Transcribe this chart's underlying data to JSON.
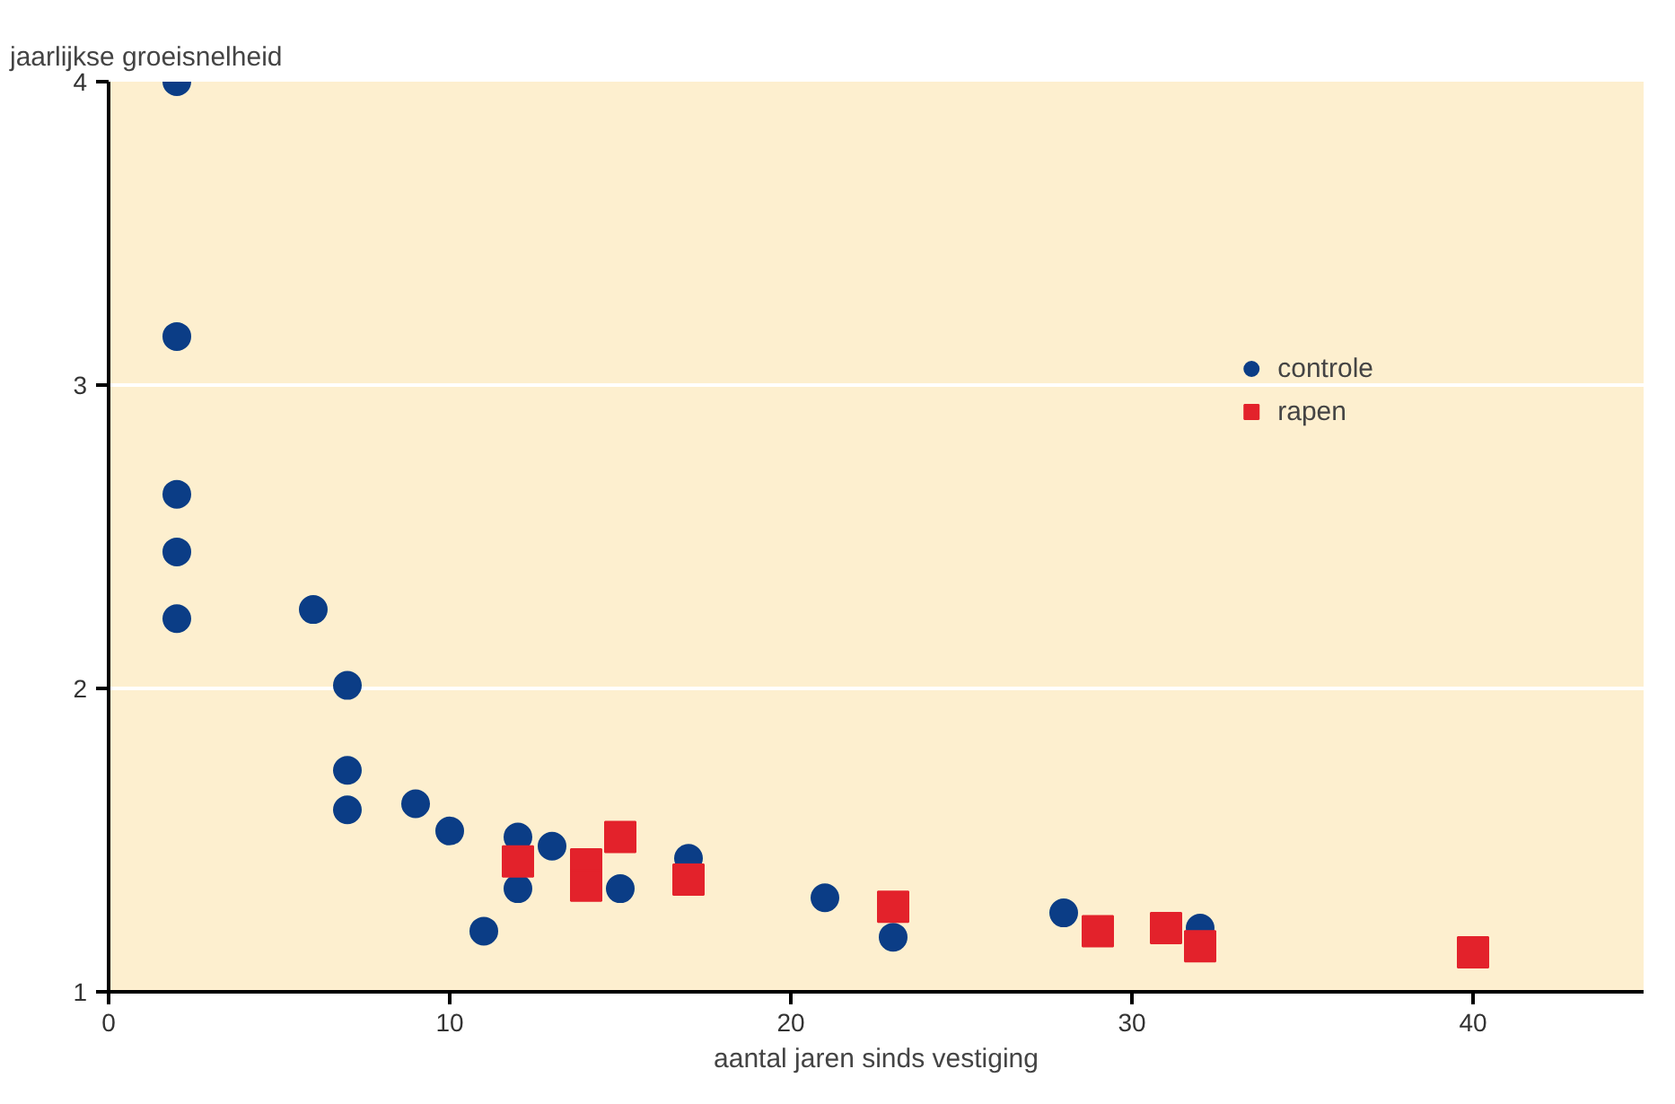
{
  "chart_data": {
    "type": "scatter",
    "xlabel": "aantal jaren sinds vestiging",
    "ylabel": "jaarlijkse groeisnelheid",
    "xlim": [
      0,
      45
    ],
    "ylim": [
      1,
      4
    ],
    "xticks": [
      0,
      10,
      20,
      30,
      40
    ],
    "yticks": [
      1,
      2,
      3,
      4
    ],
    "grid": "y",
    "legend": "top right",
    "series": [
      {
        "name": "controle",
        "color": "#0b3d86",
        "marker": "circle",
        "x": [
          2,
          2,
          2,
          2,
          2,
          6,
          7,
          7,
          7,
          9,
          10,
          11,
          12,
          12,
          13,
          15,
          17,
          21,
          23,
          28,
          32
        ],
        "values": [
          4.0,
          3.16,
          2.64,
          2.45,
          2.23,
          2.26,
          2.01,
          1.73,
          1.6,
          1.62,
          1.53,
          1.2,
          1.51,
          1.34,
          1.48,
          1.34,
          1.44,
          1.31,
          1.18,
          1.26,
          1.21
        ]
      },
      {
        "name": "rapen",
        "color": "#e3222b",
        "marker": "square",
        "x": [
          12,
          14,
          14,
          15,
          17,
          23,
          29,
          31,
          32,
          40
        ],
        "values": [
          1.43,
          1.42,
          1.35,
          1.51,
          1.37,
          1.28,
          1.2,
          1.21,
          1.15,
          1.13
        ]
      }
    ]
  }
}
